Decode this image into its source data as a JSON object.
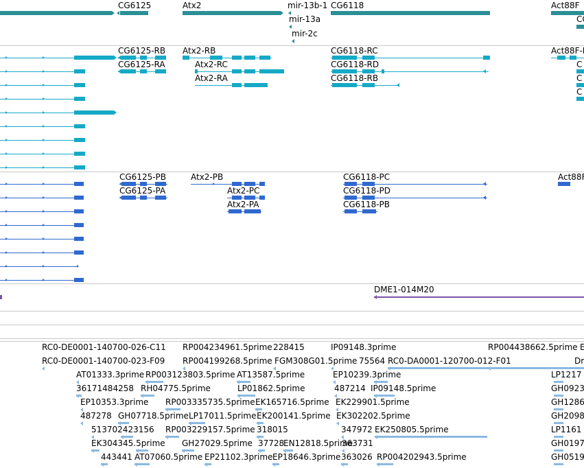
{
  "colors": {
    "gene": "#2b8f97",
    "transcript": "#16a9c6",
    "protein": "#2f69cf",
    "clone": "#7a52a8",
    "est": "#8bb9e2",
    "separator": "#c8c8c8"
  },
  "gene_track": {
    "labels": [
      "CG6125",
      "Atx2",
      "mir-13b-1",
      "mir-13a",
      "mir-2c",
      "CG6118",
      "Act88F",
      "CG"
    ]
  },
  "transcript_track": {
    "labels": [
      "CG6125-RB",
      "CG6125-RA",
      "Atx2-RB",
      "Atx2-RC",
      "Atx2-RA",
      "CG6118-RC",
      "CG6118-RD",
      "CG6118-RB",
      "Act88F-R",
      "C",
      "C",
      "C"
    ]
  },
  "protein_track": {
    "labels": [
      "CG6125-PB",
      "CG6125-PA",
      "Atx2-PB",
      "Atx2-PC",
      "Atx2-PA",
      "CG6118-PC",
      "CG6118-PD",
      "CG6118-PB",
      "Act88F"
    ]
  },
  "clone_track": {
    "labels": [
      "DME1-014M20"
    ]
  },
  "est_track": {
    "labels": [
      "RC0-DE0001-140700-026-C11",
      "RP004234961.5prime",
      "228415",
      "IP09148.3prime",
      "RP004438662.5prime",
      "E",
      "RC0-DE0001-140700-023-F09",
      "RP004199268.5prime",
      "FGM308G01.5prime",
      "75564",
      "RC0-DA0001-120700-012-F01",
      "Dr",
      "AT01333.3prime",
      "RP003123803.5prime",
      "AT13587.5prime",
      "EP10239.3prime",
      "LP1217",
      "36171484258",
      "RH04775.5prime",
      "LP01862.5prime",
      "487214",
      "IP09148.5prime",
      "GH0923",
      "EP10353.3prime",
      "RP003335735.5prime",
      "EK165716.5prime",
      "EK229901.5prime",
      "GH1286",
      "487278",
      "GH07718.5prime",
      "LP17011.5prime",
      "EK200141.5prime",
      "EK302202.5prime",
      "GH2098",
      "513702423156",
      "RP003229157.5prime",
      "318015",
      "347972",
      "EK250805.5prime",
      "LP1161",
      "EK304345.5prime",
      "GH27029.5prime",
      "37728",
      "EN12818.5prime",
      "363731",
      "GH0197",
      "443441",
      "AT07060.5prime",
      "EP21102.3prime",
      "EP18646.3prime",
      "363026",
      "RP004202943.5prime",
      "GH0519"
    ]
  }
}
